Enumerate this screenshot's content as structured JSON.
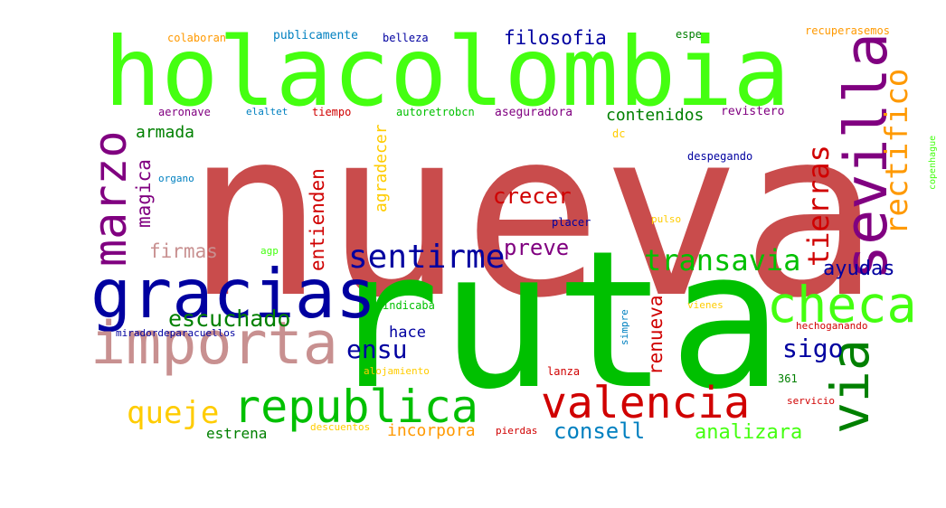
{
  "cloud": {
    "words": [
      {
        "text": "nueva",
        "color": "#c94c4c",
        "orientation": "horizontal"
      },
      {
        "text": "ruta",
        "color": "#00c000",
        "orientation": "horizontal"
      },
      {
        "text": "holacolombia",
        "color": "#44ff10",
        "orientation": "horizontal"
      },
      {
        "text": "gracias",
        "color": "#0000a0",
        "orientation": "horizontal"
      },
      {
        "text": "importa",
        "color": "#c89090",
        "orientation": "horizontal"
      },
      {
        "text": "republica",
        "color": "#00c000",
        "orientation": "horizontal"
      },
      {
        "text": "valencia",
        "color": "#d00000",
        "orientation": "horizontal"
      },
      {
        "text": "checa",
        "color": "#44ff10",
        "orientation": "horizontal"
      },
      {
        "text": "sevilla",
        "color": "#800080",
        "orientation": "vertical"
      },
      {
        "text": "via",
        "color": "#008000",
        "orientation": "vertical"
      },
      {
        "text": "marzo",
        "color": "#800080",
        "orientation": "vertical"
      },
      {
        "text": "rectifico",
        "color": "#ff9900",
        "orientation": "vertical"
      },
      {
        "text": "sentirme",
        "color": "#0000a0",
        "orientation": "horizontal"
      },
      {
        "text": "transavia",
        "color": "#00c000",
        "orientation": "horizontal"
      },
      {
        "text": "tierras",
        "color": "#d00000",
        "orientation": "vertical"
      },
      {
        "text": "escuchado",
        "color": "#008000",
        "orientation": "horizontal"
      },
      {
        "text": "queje",
        "color": "#ffcc00",
        "orientation": "horizontal"
      },
      {
        "text": "sigo",
        "color": "#0000a0",
        "orientation": "horizontal"
      },
      {
        "text": "consell",
        "color": "#0080c0",
        "orientation": "horizontal"
      },
      {
        "text": "analizara",
        "color": "#44ff10",
        "orientation": "horizontal"
      },
      {
        "text": "ensu",
        "color": "#0000a0",
        "orientation": "horizontal"
      },
      {
        "text": "crecer",
        "color": "#d00000",
        "orientation": "horizontal"
      },
      {
        "text": "preve",
        "color": "#800080",
        "orientation": "horizontal"
      },
      {
        "text": "ayudas",
        "color": "#0000a0",
        "orientation": "horizontal"
      },
      {
        "text": "firmas",
        "color": "#c89090",
        "orientation": "horizontal"
      },
      {
        "text": "magica",
        "color": "#800080",
        "orientation": "vertical"
      },
      {
        "text": "entienden",
        "color": "#d00000",
        "orientation": "vertical"
      },
      {
        "text": "renueva",
        "color": "#d00000",
        "orientation": "vertical"
      },
      {
        "text": "filosofia",
        "color": "#0000a0",
        "orientation": "horizontal"
      },
      {
        "text": "contenidos",
        "color": "#008000",
        "orientation": "horizontal"
      },
      {
        "text": "armada",
        "color": "#008000",
        "orientation": "horizontal"
      },
      {
        "text": "incorpora",
        "color": "#ff9900",
        "orientation": "horizontal"
      },
      {
        "text": "estrena",
        "color": "#008000",
        "orientation": "horizontal"
      },
      {
        "text": "hace",
        "color": "#0000a0",
        "orientation": "horizontal"
      },
      {
        "text": "agradecer",
        "color": "#ffcc00",
        "orientation": "vertical"
      },
      {
        "text": "colaboran",
        "color": "#ff9900",
        "orientation": "horizontal"
      },
      {
        "text": "publicamente",
        "color": "#0080c0",
        "orientation": "horizontal"
      },
      {
        "text": "belleza",
        "color": "#0000a0",
        "orientation": "horizontal"
      },
      {
        "text": "espe",
        "color": "#008000",
        "orientation": "horizontal"
      },
      {
        "text": "recuperasemos",
        "color": "#ff9900",
        "orientation": "horizontal"
      },
      {
        "text": "aeronave",
        "color": "#800080",
        "orientation": "horizontal"
      },
      {
        "text": "elaltet",
        "color": "#0080c0",
        "orientation": "horizontal"
      },
      {
        "text": "tiempo",
        "color": "#d00000",
        "orientation": "horizontal"
      },
      {
        "text": "autoretrobcn",
        "color": "#00c000",
        "orientation": "horizontal"
      },
      {
        "text": "aseguradora",
        "color": "#800080",
        "orientation": "horizontal"
      },
      {
        "text": "revistero",
        "color": "#800080",
        "orientation": "horizontal"
      },
      {
        "text": "dc",
        "color": "#ffcc00",
        "orientation": "horizontal"
      },
      {
        "text": "despegando",
        "color": "#0000a0",
        "orientation": "horizontal"
      },
      {
        "text": "copenhague",
        "color": "#44ff10",
        "orientation": "vertical"
      },
      {
        "text": "organo",
        "color": "#0080c0",
        "orientation": "horizontal"
      },
      {
        "text": "placer",
        "color": "#0000a0",
        "orientation": "horizontal"
      },
      {
        "text": "pulso",
        "color": "#ffcc00",
        "orientation": "horizontal"
      },
      {
        "text": "agp",
        "color": "#44ff10",
        "orientation": "horizontal"
      },
      {
        "text": "indicaba",
        "color": "#00c000",
        "orientation": "horizontal"
      },
      {
        "text": "simpre",
        "color": "#0080c0",
        "orientation": "vertical"
      },
      {
        "text": "vienes",
        "color": "#ffcc00",
        "orientation": "horizontal"
      },
      {
        "text": "hechoganando",
        "color": "#d00000",
        "orientation": "horizontal"
      },
      {
        "text": "miradordeparacuellos",
        "color": "#0000a0",
        "orientation": "horizontal"
      },
      {
        "text": "alojamiento",
        "color": "#ffcc00",
        "orientation": "horizontal"
      },
      {
        "text": "lanza",
        "color": "#d00000",
        "orientation": "horizontal"
      },
      {
        "text": "361",
        "color": "#008000",
        "orientation": "horizontal"
      },
      {
        "text": "servicio",
        "color": "#d00000",
        "orientation": "horizontal"
      },
      {
        "text": "descuentos",
        "color": "#ffcc00",
        "orientation": "horizontal"
      },
      {
        "text": "pierdas",
        "color": "#d00000",
        "orientation": "horizontal"
      }
    ]
  }
}
